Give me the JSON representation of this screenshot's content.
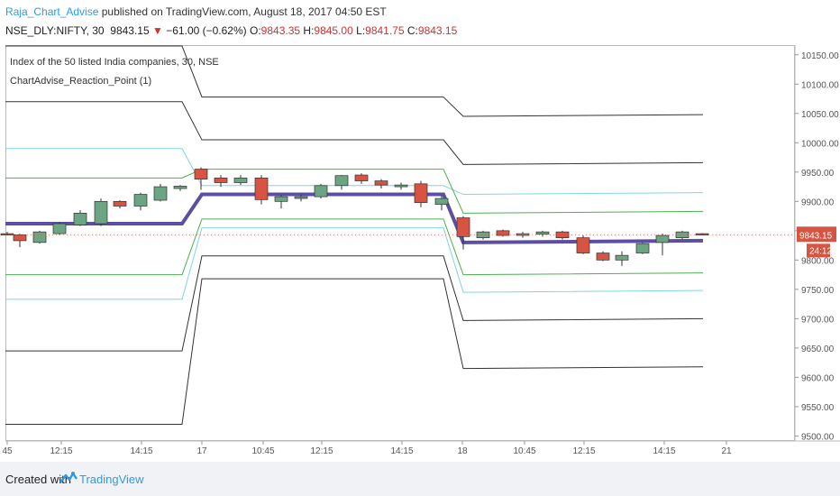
{
  "header": {
    "author": "Raja_Chart_Advise",
    "published": "published on TradingView.com, August 18, 2017 04:50 EST"
  },
  "symbol_line": {
    "symbol": "NSE_DLY:NIFTY, 30",
    "last": "9843.15",
    "change": "−61.00 (−0.62%)",
    "o_label": "O:",
    "o": "9843.35",
    "h_label": "H:",
    "h": "9845.00",
    "l_label": "L:",
    "l": "9841.75",
    "c_label": "C:",
    "c": "9843.15"
  },
  "legend": {
    "line1": "Index of the 50 listed India companies, 30, NSE",
    "line2": "ChartAdvise_Reaction_Point (1)"
  },
  "footer": {
    "created_with": "Created with",
    "brand": "TradingView"
  },
  "colors": {
    "up": "#6ba583",
    "down": "#d75442",
    "pivot": "#5b4fa3",
    "cyan": "#7fd6e0",
    "green": "#4caf50",
    "gray": "#333333",
    "price_tag": "#d75442"
  },
  "chart_data": {
    "type": "candlestick",
    "x_tick_labels": [
      "45",
      "12:15",
      "14:15",
      "17",
      "10:45",
      "12:15",
      "14:15",
      "18",
      "10:45",
      "12:15",
      "14:15",
      "21"
    ],
    "y_tick_labels": [
      "10150.00",
      "10100.00",
      "10050.00",
      "10000.00",
      "9950.00",
      "9900.00",
      "9850.00",
      "9800.00",
      "9750.00",
      "9700.00",
      "9650.00",
      "9600.00",
      "9550.00",
      "9500.00"
    ],
    "ylim": [
      9493,
      10165
    ],
    "last_price_label": "9843.15",
    "countdown_label": "24:12",
    "candles": [
      {
        "o": 9845,
        "h": 9848,
        "l": 9842,
        "c": 9843
      },
      {
        "o": 9843,
        "h": 9845,
        "l": 9822,
        "c": 9833
      },
      {
        "o": 9830,
        "h": 9850,
        "l": 9828,
        "c": 9848
      },
      {
        "o": 9845,
        "h": 9865,
        "l": 9843,
        "c": 9862
      },
      {
        "o": 9860,
        "h": 9885,
        "l": 9858,
        "c": 9880
      },
      {
        "o": 9862,
        "h": 9905,
        "l": 9858,
        "c": 9900
      },
      {
        "o": 9900,
        "h": 9902,
        "l": 9888,
        "c": 9892
      },
      {
        "o": 9892,
        "h": 9915,
        "l": 9885,
        "c": 9912
      },
      {
        "o": 9902,
        "h": 9930,
        "l": 9900,
        "c": 9925
      },
      {
        "o": 9922,
        "h": 9928,
        "l": 9918,
        "c": 9926
      },
      {
        "o": 9955,
        "h": 9958,
        "l": 9920,
        "c": 9938
      },
      {
        "o": 9940,
        "h": 9945,
        "l": 9925,
        "c": 9932
      },
      {
        "o": 9932,
        "h": 9945,
        "l": 9928,
        "c": 9940
      },
      {
        "o": 9940,
        "h": 9945,
        "l": 9895,
        "c": 9903
      },
      {
        "o": 9900,
        "h": 9912,
        "l": 9888,
        "c": 9908
      },
      {
        "o": 9905,
        "h": 9912,
        "l": 9900,
        "c": 9908
      },
      {
        "o": 9908,
        "h": 9930,
        "l": 9905,
        "c": 9927
      },
      {
        "o": 9927,
        "h": 9945,
        "l": 9920,
        "c": 9944
      },
      {
        "o": 9945,
        "h": 9948,
        "l": 9930,
        "c": 9935
      },
      {
        "o": 9935,
        "h": 9938,
        "l": 9922,
        "c": 9928
      },
      {
        "o": 9925,
        "h": 9932,
        "l": 9920,
        "c": 9928
      },
      {
        "o": 9930,
        "h": 9935,
        "l": 9890,
        "c": 9898
      },
      {
        "o": 9895,
        "h": 9910,
        "l": 9885,
        "c": 9905
      },
      {
        "o": 9872,
        "h": 9875,
        "l": 9818,
        "c": 9840
      },
      {
        "o": 9838,
        "h": 9850,
        "l": 9835,
        "c": 9848
      },
      {
        "o": 9850,
        "h": 9852,
        "l": 9840,
        "c": 9842
      },
      {
        "o": 9842,
        "h": 9848,
        "l": 9838,
        "c": 9845
      },
      {
        "o": 9844,
        "h": 9850,
        "l": 9840,
        "c": 9848
      },
      {
        "o": 9848,
        "h": 9850,
        "l": 9835,
        "c": 9838
      },
      {
        "o": 9838,
        "h": 9842,
        "l": 9810,
        "c": 9812
      },
      {
        "o": 9812,
        "h": 9815,
        "l": 9798,
        "c": 9800
      },
      {
        "o": 9800,
        "h": 9815,
        "l": 9790,
        "c": 9808
      },
      {
        "o": 9812,
        "h": 9830,
        "l": 9810,
        "c": 9828
      },
      {
        "o": 9830,
        "h": 9845,
        "l": 9808,
        "c": 9842
      },
      {
        "o": 9838,
        "h": 9850,
        "l": 9835,
        "c": 9848
      },
      {
        "o": 9845,
        "h": 9846,
        "l": 9842,
        "c": 9843
      }
    ],
    "levels": [
      {
        "name": "gray-top",
        "color": "gray",
        "values": [
          10165,
          10078,
          10045,
          10048
        ]
      },
      {
        "name": "gray-r1",
        "color": "gray",
        "values": [
          10070,
          10005,
          9963,
          9966
        ]
      },
      {
        "name": "cyan-r",
        "color": "cyan",
        "values": [
          9990,
          9927,
          9912,
          9915
        ]
      },
      {
        "name": "green-r",
        "color": "green",
        "values": [
          9940,
          9955,
          9880,
          9883
        ]
      },
      {
        "name": "pivot",
        "color": "pivot",
        "values": [
          9862,
          9912,
          9830,
          9833
        ]
      },
      {
        "name": "green-s",
        "color": "green",
        "values": [
          9775,
          9870,
          9775,
          9778
        ]
      },
      {
        "name": "cyan-s",
        "color": "cyan",
        "values": [
          9733,
          9855,
          9745,
          9748
        ]
      },
      {
        "name": "gray-s1",
        "color": "gray",
        "values": [
          9645,
          9807,
          9697,
          9700
        ]
      },
      {
        "name": "gray-bottom",
        "color": "gray",
        "values": [
          9520,
          9768,
          9615,
          9618
        ]
      }
    ]
  }
}
